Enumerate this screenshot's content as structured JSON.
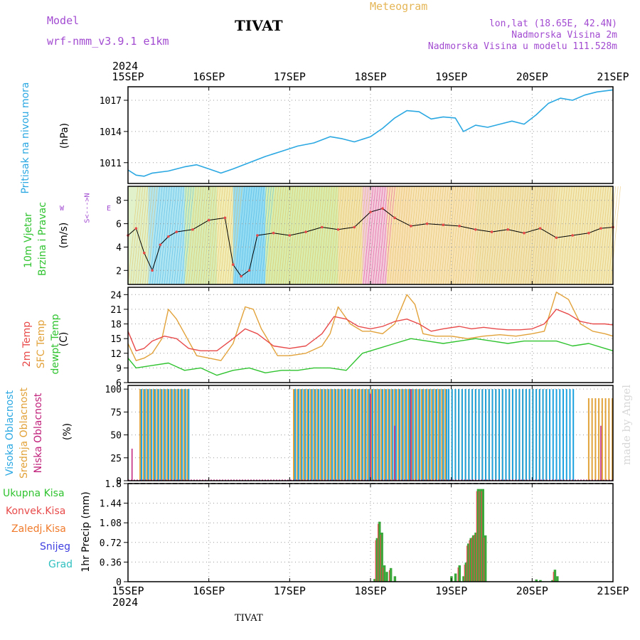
{
  "header": {
    "model_label": "Model",
    "model_name": "wrf-nmm_v3.9.1  e1km",
    "title": "TIVAT",
    "meteogram": "Meteogram",
    "lonlat": "lon,lat (18.65E, 42.4N)",
    "altitude": "Nadmorska Visina 2m",
    "model_altitude": "Nadmorska Visina u modelu 111.528m",
    "watermark": "made by Angel",
    "footer_station": "TIVAT"
  },
  "colors": {
    "pressure": "#2ba8e2",
    "temp2m": "#e84a4a",
    "sfc": "#e2a23a",
    "dewpt": "#2fc32f",
    "high_cloud": "#1da2e0",
    "mid_cloud": "#e2a23a",
    "low_cloud": "#c0207a",
    "total_precip": "#3aa83a",
    "conv_precip": "#e84a4a",
    "frz_rain": "#f07a2a",
    "snow": "#4040e0",
    "graupel": "#30c0c0",
    "label_purple": "#a24bd1"
  },
  "axis": {
    "year_top": "2024",
    "year_bottom": "2024",
    "dates": [
      "15SEP",
      "16SEP",
      "17SEP",
      "18SEP",
      "19SEP",
      "20SEP",
      "21SEP"
    ]
  },
  "panels": {
    "pressure": {
      "label": "Pritisak na nivou mora",
      "unit": "(hPa)",
      "ticks": [
        "1011",
        "1014",
        "1017"
      ]
    },
    "wind": {
      "label1": "10m Vjetar",
      "label2": "Brzina i Pravac",
      "unit": "(m/s)",
      "ticks": [
        "2",
        "4",
        "6",
        "8"
      ],
      "compass_ns": "S<--->N",
      "compass_w": "W",
      "compass_e": "E"
    },
    "temp": {
      "label1": "2m Temp",
      "label2": "SFC Temp",
      "label3": "dewpt Temp",
      "unit": "(C)",
      "ticks": [
        "6",
        "9",
        "12",
        "15",
        "18",
        "21",
        "24"
      ]
    },
    "cloud": {
      "label1": "Visoka Oblacnost",
      "label2": "Srednja Oblacnost",
      "label3": "Niska Oblacnost",
      "unit": "(%)",
      "ticks": [
        "0",
        "25",
        "50",
        "75",
        "100"
      ]
    },
    "precip": {
      "label": "1hr Precip (mm)",
      "ticks": [
        "0",
        "0.36",
        "0.72",
        "1.08",
        "1.44",
        "1.8"
      ],
      "legend": [
        "Ukupna Kisa",
        "Konvek.Kisa",
        "Zaledj.Kisa",
        "Snijeg",
        "Grad"
      ]
    }
  },
  "chart_data": [
    {
      "type": "line",
      "title": "",
      "ylabel": "Pritisak na nivou mora (hPa)",
      "x_range": [
        "2024-09-15",
        "2024-09-21"
      ],
      "ylim": [
        1009,
        1018.3
      ],
      "series": [
        {
          "name": "Pritisak na nivou mora",
          "x": [
            0,
            0.1,
            0.2,
            0.3,
            0.5,
            0.7,
            0.85,
            1.0,
            1.15,
            1.3,
            1.5,
            1.7,
            1.9,
            2.1,
            2.3,
            2.5,
            2.65,
            2.8,
            3.0,
            3.15,
            3.3,
            3.45,
            3.6,
            3.75,
            3.9,
            4.05,
            4.15,
            4.3,
            4.45,
            4.6,
            4.75,
            4.9,
            5.05,
            5.2,
            5.35,
            5.5,
            5.65,
            5.8,
            6.0
          ],
          "y": [
            1010.3,
            1009.8,
            1009.7,
            1010.0,
            1010.2,
            1010.6,
            1010.8,
            1010.4,
            1010.0,
            1010.4,
            1011.0,
            1011.6,
            1012.1,
            1012.6,
            1012.9,
            1013.5,
            1013.3,
            1013.0,
            1013.5,
            1014.3,
            1015.3,
            1016.0,
            1015.9,
            1015.2,
            1015.4,
            1015.3,
            1014.0,
            1014.6,
            1014.4,
            1014.7,
            1015.0,
            1014.7,
            1015.6,
            1016.7,
            1017.2,
            1017.0,
            1017.5,
            1017.8,
            1018.0
          ]
        }
      ]
    },
    {
      "type": "line",
      "title": "",
      "ylabel": "10m Vjetar Brzina i Pravac (m/s)",
      "x_range": [
        "2024-09-15",
        "2024-09-21"
      ],
      "ylim": [
        0.8,
        9.2
      ],
      "series": [
        {
          "name": "wind_speed",
          "x": [
            0,
            0.1,
            0.2,
            0.3,
            0.4,
            0.5,
            0.6,
            0.8,
            1.0,
            1.2,
            1.3,
            1.4,
            1.5,
            1.6,
            1.8,
            2.0,
            2.2,
            2.4,
            2.6,
            2.8,
            3.0,
            3.15,
            3.3,
            3.5,
            3.7,
            3.9,
            4.1,
            4.3,
            4.5,
            4.7,
            4.9,
            5.1,
            5.3,
            5.5,
            5.7,
            5.85,
            6.0
          ],
          "y": [
            5.0,
            5.6,
            3.5,
            2.0,
            4.2,
            4.9,
            5.3,
            5.5,
            6.3,
            6.5,
            2.5,
            1.5,
            2.0,
            5.0,
            5.2,
            5.0,
            5.3,
            5.7,
            5.5,
            5.7,
            7.0,
            7.3,
            6.5,
            5.8,
            6.0,
            5.9,
            5.8,
            5.5,
            5.3,
            5.5,
            5.2,
            5.6,
            4.8,
            5.0,
            5.2,
            5.6,
            5.7
          ]
        }
      ]
    },
    {
      "type": "line",
      "title": "",
      "ylabel": "Temp (C)",
      "x_range": [
        "2024-09-15",
        "2024-09-21"
      ],
      "ylim": [
        6,
        25.5
      ],
      "series": [
        {
          "name": "2m Temp",
          "x": [
            0,
            0.1,
            0.2,
            0.3,
            0.45,
            0.6,
            0.75,
            0.9,
            1.1,
            1.3,
            1.45,
            1.6,
            1.8,
            2.0,
            2.2,
            2.4,
            2.55,
            2.7,
            2.85,
            3.0,
            3.15,
            3.3,
            3.45,
            3.6,
            3.75,
            3.9,
            4.1,
            4.25,
            4.4,
            4.55,
            4.7,
            4.85,
            5.0,
            5.15,
            5.3,
            5.45,
            5.6,
            5.75,
            5.9,
            6.0
          ],
          "y": [
            16.5,
            12.5,
            13.0,
            14.5,
            15.5,
            15.0,
            13.0,
            12.5,
            12.5,
            15.0,
            17.0,
            16.0,
            13.5,
            13.0,
            13.5,
            16.0,
            19.5,
            19.0,
            17.5,
            17.0,
            17.5,
            18.5,
            19.0,
            18.0,
            16.5,
            17.0,
            17.5,
            17.0,
            17.3,
            17.0,
            16.8,
            16.8,
            17.0,
            18.0,
            21.0,
            20.0,
            18.5,
            18.0,
            18.0,
            17.8
          ]
        },
        {
          "name": "SFC Temp",
          "x": [
            0,
            0.1,
            0.2,
            0.3,
            0.42,
            0.5,
            0.6,
            0.7,
            0.85,
            1.0,
            1.15,
            1.3,
            1.45,
            1.55,
            1.65,
            1.85,
            2.0,
            2.2,
            2.4,
            2.5,
            2.6,
            2.75,
            2.9,
            3.0,
            3.15,
            3.3,
            3.45,
            3.55,
            3.65,
            3.8,
            4.0,
            4.2,
            4.4,
            4.6,
            4.8,
            5.0,
            5.15,
            5.3,
            5.45,
            5.6,
            5.75,
            5.9,
            6.0
          ],
          "y": [
            14.0,
            10.5,
            11.0,
            12.0,
            15.0,
            21.0,
            19.0,
            16.0,
            11.5,
            11.0,
            10.5,
            14.0,
            21.5,
            21.0,
            17.0,
            11.5,
            11.5,
            12.0,
            13.5,
            16.0,
            21.5,
            18.0,
            16.5,
            16.5,
            16.0,
            18.0,
            24.0,
            22.0,
            16.0,
            15.5,
            15.5,
            15.0,
            15.5,
            15.8,
            15.5,
            16.0,
            16.5,
            24.5,
            23.0,
            18.0,
            16.5,
            16.0,
            15.5
          ]
        },
        {
          "name": "dewpt Temp",
          "x": [
            0,
            0.1,
            0.3,
            0.5,
            0.7,
            0.9,
            1.1,
            1.3,
            1.5,
            1.7,
            1.9,
            2.1,
            2.3,
            2.5,
            2.7,
            2.9,
            3.1,
            3.3,
            3.5,
            3.7,
            3.9,
            4.1,
            4.3,
            4.5,
            4.7,
            4.9,
            5.1,
            5.3,
            5.5,
            5.7,
            5.9,
            6.0
          ],
          "y": [
            11.0,
            9.0,
            9.5,
            10.0,
            8.5,
            9.0,
            7.5,
            8.5,
            9.0,
            8.0,
            8.5,
            8.5,
            9.0,
            9.0,
            8.5,
            12.0,
            13.0,
            14.0,
            15.0,
            14.5,
            14.0,
            14.5,
            15.0,
            14.5,
            14.0,
            14.5,
            14.5,
            14.5,
            13.5,
            14.0,
            13.0,
            12.5
          ]
        }
      ]
    },
    {
      "type": "bar",
      "title": "",
      "ylabel": "Oblacnost (%)",
      "x_range": [
        "2024-09-15",
        "2024-09-21"
      ],
      "ylim": [
        0,
        100
      ],
      "series": [
        {
          "name": "Visoka Oblacnost",
          "periods": [
            [
              0.15,
              0.75,
              100
            ],
            [
              2.05,
              3.95,
              100
            ],
            [
              3.95,
              5.5,
              100
            ]
          ]
        },
        {
          "name": "Srednja Oblacnost",
          "periods": [
            [
              0.15,
              0.75,
              100
            ],
            [
              2.05,
              5.2,
              100
            ],
            [
              5.7,
              6.0,
              90
            ]
          ]
        },
        {
          "name": "Niska Oblacnost",
          "points": [
            [
              0.05,
              35
            ],
            [
              0.9,
              0
            ],
            [
              3.0,
              95
            ],
            [
              3.3,
              60
            ],
            [
              3.5,
              100
            ],
            [
              5.85,
              60
            ]
          ]
        }
      ]
    },
    {
      "type": "bar",
      "title": "",
      "ylabel": "1hr Precip (mm)",
      "x_range": [
        "2024-09-15",
        "2024-09-21"
      ],
      "ylim": [
        0,
        1.8
      ],
      "series": [
        {
          "name": "Ukupna Kisa",
          "x": [
            3.05,
            3.08,
            3.11,
            3.14,
            3.17,
            3.2,
            3.25,
            3.3,
            4.0,
            4.05,
            4.1,
            4.15,
            4.18,
            4.21,
            4.24,
            4.27,
            4.3,
            4.33,
            4.36,
            4.39,
            4.42,
            5.05,
            5.1,
            5.25,
            5.28,
            5.31
          ],
          "y": [
            0.05,
            0.8,
            1.1,
            0.9,
            0.3,
            0.18,
            0.25,
            0.1,
            0.1,
            0.15,
            0.3,
            0.1,
            0.35,
            0.7,
            0.8,
            0.85,
            0.9,
            1.7,
            1.7,
            1.7,
            0.85,
            0.04,
            0.03,
            0.03,
            0.22,
            0.1
          ]
        }
      ]
    }
  ]
}
